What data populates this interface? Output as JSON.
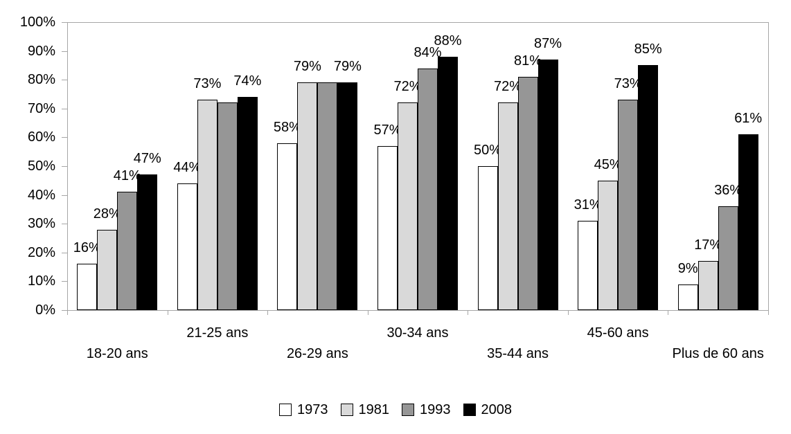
{
  "chart_data": {
    "type": "bar",
    "title": "",
    "xlabel": "",
    "ylabel": "",
    "categories": [
      "18-20 ans",
      "21-25 ans",
      "26-29 ans",
      "30-34 ans",
      "35-44 ans",
      "45-60 ans",
      "Plus de 60 ans"
    ],
    "series": [
      {
        "name": "1973",
        "color": "#ffffff",
        "values": [
          16,
          44,
          58,
          57,
          50,
          31,
          9
        ]
      },
      {
        "name": "1981",
        "color": "#d9d9d9",
        "values": [
          28,
          73,
          79,
          72,
          72,
          45,
          17
        ]
      },
      {
        "name": "1993",
        "color": "#969696",
        "values": [
          41,
          72,
          79,
          84,
          81,
          73,
          36
        ]
      },
      {
        "name": "2008",
        "color": "#000000",
        "values": [
          47,
          74,
          79,
          88,
          87,
          85,
          61
        ]
      }
    ],
    "value_label_format": "{v}%",
    "hidden_value_labels": [
      [
        1,
        2
      ],
      [
        2,
        2
      ]
    ],
    "ylim": [
      0,
      100
    ],
    "ytick_step": 10,
    "ytick_labels": [
      "0%",
      "10%",
      "20%",
      "30%",
      "40%",
      "50%",
      "60%",
      "70%",
      "80%",
      "90%",
      "100%"
    ],
    "legend": {
      "position": "bottom",
      "entries": [
        "1973",
        "1981",
        "1993",
        "2008"
      ]
    },
    "grid": "frame top/right only, no horizontal gridlines",
    "x_labels_staggered": true
  },
  "colors": {
    "axis": "#a6a6a6",
    "text": "#000000",
    "background": "#ffffff",
    "bar_border": "#000000"
  }
}
